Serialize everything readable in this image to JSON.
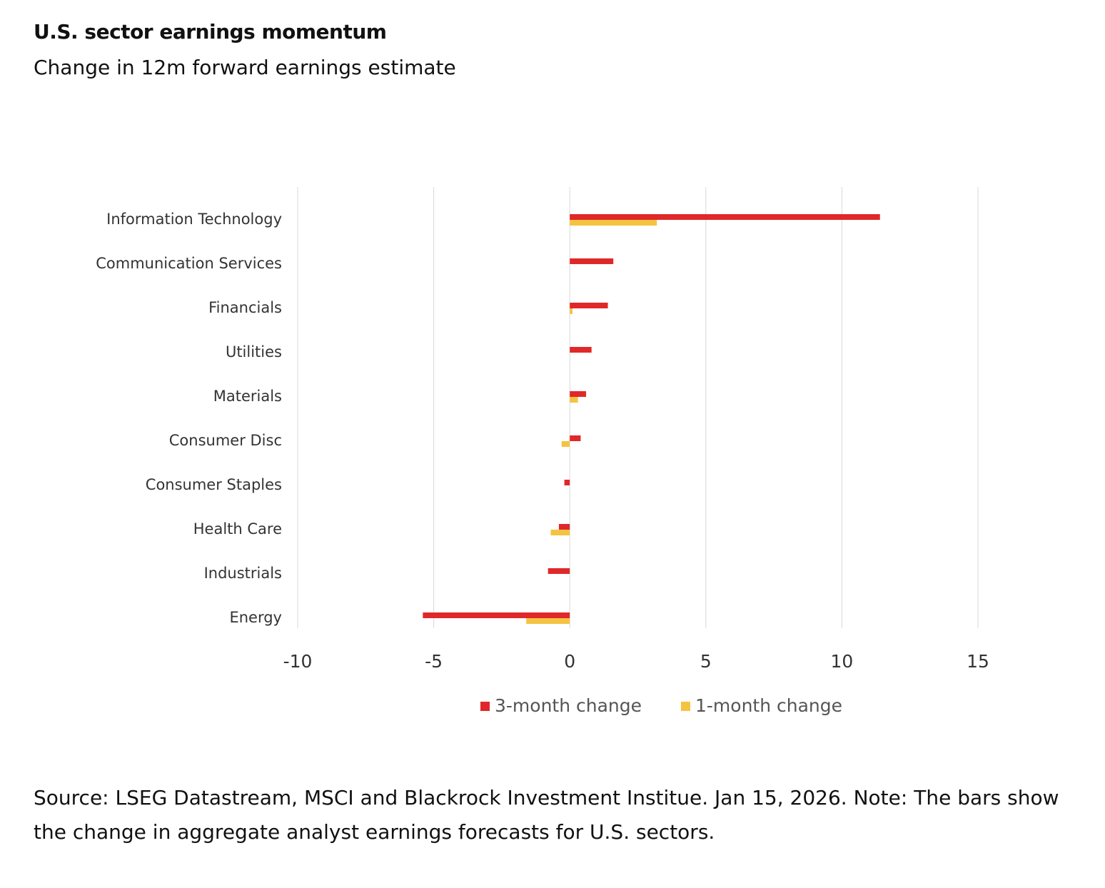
{
  "header": {
    "title": "U.S. sector earnings momentum",
    "subtitle": "Change in 12m forward earnings estimate"
  },
  "footer": {
    "source": "Source: LSEG Datastream, MSCI and Blackrock Investment Institue. Jan 15, 2026. Note: The bars show the change in aggregate analyst earnings forecasts for U.S. sectors."
  },
  "chart_data": {
    "type": "bar",
    "orientation": "horizontal",
    "title": "U.S. sector earnings momentum",
    "subtitle": "Change in 12m forward earnings estimate",
    "categories": [
      "Information Technology",
      "Communication Services",
      "Financials",
      "Utilities",
      "Materials",
      "Consumer Disc",
      "Consumer Staples",
      "Health Care",
      "Industrials",
      "Energy"
    ],
    "series": [
      {
        "name": "3-month change",
        "color": "#e0282a",
        "values": [
          11.4,
          1.6,
          1.4,
          0.8,
          0.6,
          0.4,
          -0.2,
          -0.4,
          -0.8,
          -5.4
        ]
      },
      {
        "name": "1-month change",
        "color": "#f5c342",
        "values": [
          3.2,
          0.0,
          0.1,
          0.0,
          0.3,
          -0.3,
          0.0,
          -0.7,
          0.0,
          -1.6
        ]
      }
    ],
    "xlim": [
      -10,
      15
    ],
    "xticks": [
      -10,
      -5,
      0,
      5,
      10,
      15
    ],
    "xlabel": "",
    "ylabel": "",
    "grid": "vertical",
    "legend": "bottom-center"
  }
}
